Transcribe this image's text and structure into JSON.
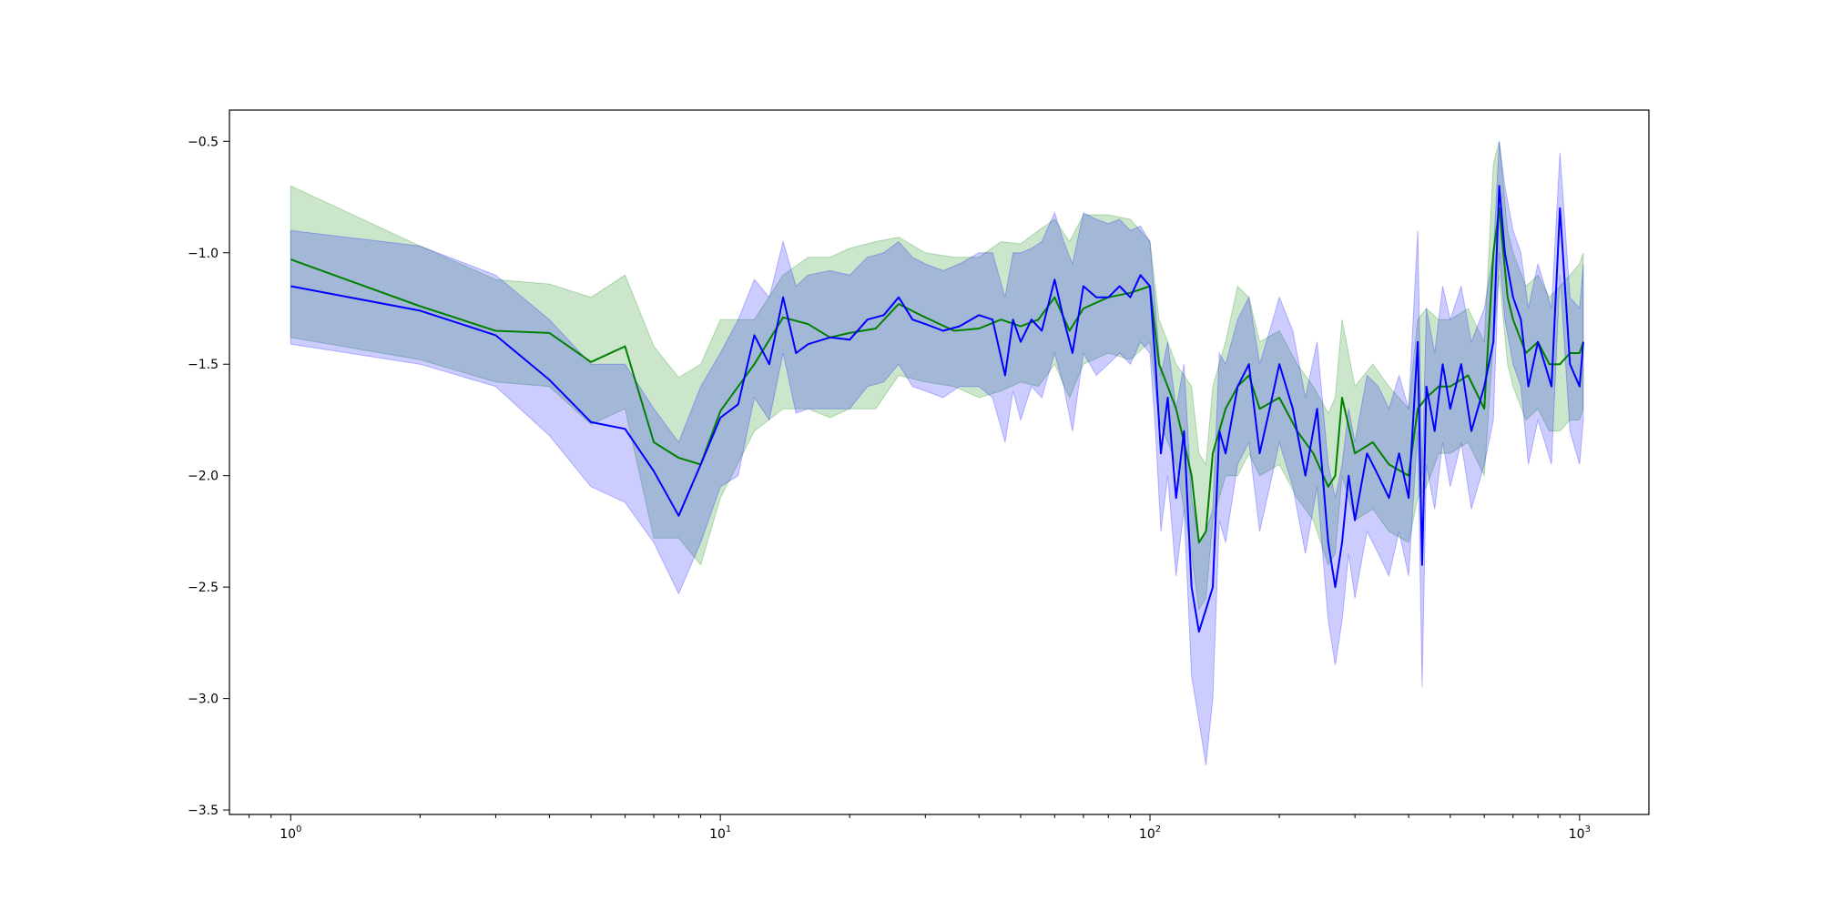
{
  "chart_data": {
    "type": "line",
    "title": "",
    "xlabel": "",
    "ylabel": "",
    "xscale": "log",
    "xlim": [
      0.72,
      1450
    ],
    "ylim": [
      -3.52,
      -0.36
    ],
    "grid": false,
    "legend": "none",
    "x_ticks": [
      {
        "value": 1,
        "base": "10",
        "exp": "0"
      },
      {
        "value": 10,
        "base": "10",
        "exp": "1"
      },
      {
        "value": 100,
        "base": "10",
        "exp": "2"
      },
      {
        "value": 1000,
        "base": "10",
        "exp": "3"
      }
    ],
    "y_ticks": [
      {
        "value": -0.5,
        "label": "−0.5"
      },
      {
        "value": -1.0,
        "label": "−1.0"
      },
      {
        "value": -1.5,
        "label": "−1.5"
      },
      {
        "value": -2.0,
        "label": "−2.0"
      },
      {
        "value": -2.5,
        "label": "−2.5"
      },
      {
        "value": -3.0,
        "label": "−3.0"
      },
      {
        "value": -3.5,
        "label": "−3.5"
      }
    ],
    "series": [
      {
        "color": "#008000",
        "band_color": "#008000",
        "band_opacity": 0.2,
        "x": [
          1,
          2,
          3,
          4,
          5,
          6,
          7,
          8,
          9,
          10,
          12,
          14,
          16,
          18,
          20,
          23,
          26,
          30,
          35,
          40,
          45,
          50,
          55,
          60,
          65,
          70,
          80,
          90,
          100,
          105,
          110,
          115,
          120,
          125,
          130,
          135,
          140,
          150,
          160,
          170,
          180,
          200,
          220,
          240,
          260,
          270,
          280,
          300,
          330,
          360,
          400,
          420,
          440,
          470,
          500,
          550,
          600,
          630,
          650,
          680,
          700,
          750,
          800,
          850,
          900,
          950,
          1000,
          1020
        ],
        "y": [
          -1.03,
          -1.24,
          -1.35,
          -1.36,
          -1.49,
          -1.42,
          -1.85,
          -1.92,
          -1.95,
          -1.71,
          -1.5,
          -1.29,
          -1.32,
          -1.38,
          -1.36,
          -1.34,
          -1.23,
          -1.29,
          -1.35,
          -1.34,
          -1.3,
          -1.33,
          -1.3,
          -1.2,
          -1.35,
          -1.25,
          -1.2,
          -1.18,
          -1.15,
          -1.5,
          -1.6,
          -1.7,
          -1.85,
          -2.0,
          -2.3,
          -2.25,
          -1.9,
          -1.7,
          -1.6,
          -1.55,
          -1.7,
          -1.65,
          -1.8,
          -1.9,
          -2.05,
          -2.0,
          -1.65,
          -1.9,
          -1.85,
          -1.95,
          -2.0,
          -1.7,
          -1.65,
          -1.6,
          -1.6,
          -1.55,
          -1.7,
          -1.0,
          -0.8,
          -1.2,
          -1.3,
          -1.45,
          -1.4,
          -1.5,
          -1.5,
          -1.45,
          -1.45,
          -1.4
        ],
        "upper": [
          -0.7,
          -0.97,
          -1.12,
          -1.14,
          -1.2,
          -1.1,
          -1.42,
          -1.56,
          -1.5,
          -1.3,
          -1.3,
          -1.1,
          -1.02,
          -1.02,
          -0.98,
          -0.95,
          -0.93,
          -1.0,
          -1.02,
          -1.02,
          -0.95,
          -0.96,
          -0.9,
          -0.85,
          -0.95,
          -0.83,
          -0.83,
          -0.85,
          -0.95,
          -1.3,
          -1.4,
          -1.5,
          -1.55,
          -1.6,
          -1.9,
          -1.95,
          -1.6,
          -1.4,
          -1.15,
          -1.2,
          -1.4,
          -1.35,
          -1.5,
          -1.6,
          -1.72,
          -1.65,
          -1.3,
          -1.6,
          -1.5,
          -1.6,
          -1.7,
          -1.3,
          -1.25,
          -1.3,
          -1.3,
          -1.25,
          -1.4,
          -0.6,
          -0.5,
          -0.9,
          -1.0,
          -1.15,
          -1.1,
          -1.2,
          -1.15,
          -1.1,
          -1.05,
          -1.0
        ],
        "lower": [
          -1.38,
          -1.48,
          -1.58,
          -1.6,
          -1.77,
          -1.7,
          -2.28,
          -2.28,
          -2.4,
          -2.1,
          -1.8,
          -1.7,
          -1.7,
          -1.74,
          -1.7,
          -1.7,
          -1.55,
          -1.58,
          -1.6,
          -1.65,
          -1.62,
          -1.58,
          -1.6,
          -1.5,
          -1.65,
          -1.5,
          -1.45,
          -1.48,
          -1.4,
          -1.75,
          -1.85,
          -1.95,
          -2.15,
          -2.35,
          -2.6,
          -2.55,
          -2.2,
          -2.0,
          -2.0,
          -1.9,
          -2.0,
          -1.95,
          -2.1,
          -2.2,
          -2.4,
          -2.35,
          -2.0,
          -2.2,
          -2.15,
          -2.25,
          -2.3,
          -2.1,
          -2.05,
          -1.9,
          -1.9,
          -1.85,
          -2.0,
          -1.4,
          -1.1,
          -1.5,
          -1.6,
          -1.75,
          -1.7,
          -1.8,
          -1.8,
          -1.75,
          -1.75,
          -1.7
        ]
      },
      {
        "color": "#0000ff",
        "band_color": "#0000ff",
        "band_opacity": 0.2,
        "x": [
          1,
          2,
          3,
          4,
          5,
          6,
          7,
          8,
          9,
          10,
          11,
          12,
          13,
          14,
          15,
          16,
          18,
          20,
          22,
          24,
          26,
          28,
          30,
          33,
          36,
          40,
          43,
          46,
          48,
          50,
          53,
          56,
          60,
          63,
          66,
          70,
          75,
          80,
          85,
          90,
          95,
          100,
          103,
          106,
          110,
          115,
          120,
          125,
          130,
          135,
          140,
          145,
          150,
          160,
          170,
          180,
          190,
          200,
          215,
          230,
          245,
          260,
          270,
          280,
          290,
          300,
          320,
          340,
          360,
          380,
          400,
          420,
          430,
          440,
          460,
          480,
          500,
          530,
          560,
          600,
          630,
          650,
          670,
          700,
          730,
          760,
          800,
          830,
          860,
          900,
          950,
          1000,
          1020
        ],
        "y": [
          -1.15,
          -1.26,
          -1.37,
          -1.57,
          -1.76,
          -1.79,
          -1.98,
          -2.18,
          -1.95,
          -1.74,
          -1.68,
          -1.37,
          -1.5,
          -1.2,
          -1.45,
          -1.41,
          -1.38,
          -1.39,
          -1.3,
          -1.28,
          -1.2,
          -1.3,
          -1.32,
          -1.35,
          -1.33,
          -1.28,
          -1.3,
          -1.55,
          -1.3,
          -1.4,
          -1.3,
          -1.35,
          -1.12,
          -1.3,
          -1.45,
          -1.15,
          -1.2,
          -1.2,
          -1.15,
          -1.2,
          -1.1,
          -1.15,
          -1.5,
          -1.9,
          -1.65,
          -2.1,
          -1.8,
          -2.5,
          -2.7,
          -2.6,
          -2.5,
          -1.8,
          -1.9,
          -1.6,
          -1.5,
          -1.9,
          -1.7,
          -1.5,
          -1.7,
          -2.0,
          -1.7,
          -2.3,
          -2.5,
          -2.3,
          -2.0,
          -2.2,
          -1.9,
          -2.0,
          -2.1,
          -1.9,
          -2.1,
          -1.4,
          -2.4,
          -1.6,
          -1.8,
          -1.5,
          -1.7,
          -1.5,
          -1.8,
          -1.6,
          -1.4,
          -0.7,
          -1.0,
          -1.2,
          -1.3,
          -1.6,
          -1.4,
          -1.5,
          -1.6,
          -0.8,
          -1.5,
          -1.6,
          -1.4
        ],
        "upper": [
          -0.9,
          -0.97,
          -1.1,
          -1.3,
          -1.5,
          -1.5,
          -1.7,
          -1.85,
          -1.6,
          -1.45,
          -1.3,
          -1.12,
          -1.2,
          -0.95,
          -1.15,
          -1.1,
          -1.08,
          -1.1,
          -1.02,
          -1.0,
          -0.95,
          -1.02,
          -1.05,
          -1.08,
          -1.05,
          -1.0,
          -1.0,
          -1.2,
          -1.0,
          -1.0,
          -0.98,
          -0.95,
          -0.82,
          -0.95,
          -1.05,
          -0.82,
          -0.85,
          -0.87,
          -0.85,
          -0.9,
          -0.88,
          -0.95,
          -1.25,
          -1.55,
          -1.4,
          -1.7,
          -1.5,
          -2.1,
          -2.3,
          -2.25,
          -2.15,
          -1.45,
          -1.5,
          -1.3,
          -1.2,
          -1.5,
          -1.35,
          -1.2,
          -1.35,
          -1.65,
          -1.4,
          -1.95,
          -2.1,
          -1.95,
          -1.7,
          -1.85,
          -1.55,
          -1.6,
          -1.7,
          -1.55,
          -1.7,
          -0.9,
          -2.0,
          -1.25,
          -1.45,
          -1.15,
          -1.3,
          -1.15,
          -1.4,
          -1.25,
          -1.0,
          -0.5,
          -0.7,
          -0.9,
          -1.0,
          -1.25,
          -1.05,
          -1.15,
          -1.25,
          -0.55,
          -1.2,
          -1.25,
          -1.05
        ],
        "lower": [
          -1.41,
          -1.5,
          -1.6,
          -1.82,
          -2.05,
          -2.12,
          -2.3,
          -2.53,
          -2.3,
          -2.05,
          -2.0,
          -1.65,
          -1.75,
          -1.45,
          -1.72,
          -1.7,
          -1.7,
          -1.7,
          -1.6,
          -1.58,
          -1.5,
          -1.6,
          -1.62,
          -1.65,
          -1.6,
          -1.6,
          -1.65,
          -1.85,
          -1.62,
          -1.75,
          -1.6,
          -1.65,
          -1.45,
          -1.6,
          -1.8,
          -1.45,
          -1.55,
          -1.5,
          -1.45,
          -1.5,
          -1.4,
          -1.45,
          -1.8,
          -2.25,
          -2.0,
          -2.45,
          -2.15,
          -2.9,
          -3.1,
          -3.3,
          -3.0,
          -2.2,
          -2.3,
          -1.95,
          -1.85,
          -2.25,
          -2.05,
          -1.85,
          -2.05,
          -2.35,
          -2.05,
          -2.65,
          -2.85,
          -2.65,
          -2.35,
          -2.55,
          -2.25,
          -2.35,
          -2.45,
          -2.25,
          -2.45,
          -1.8,
          -2.95,
          -1.95,
          -2.15,
          -1.85,
          -2.05,
          -1.85,
          -2.15,
          -1.95,
          -1.75,
          -1.0,
          -1.3,
          -1.5,
          -1.6,
          -1.95,
          -1.75,
          -1.85,
          -1.95,
          -1.1,
          -1.8,
          -1.95,
          -1.75
        ]
      }
    ]
  }
}
